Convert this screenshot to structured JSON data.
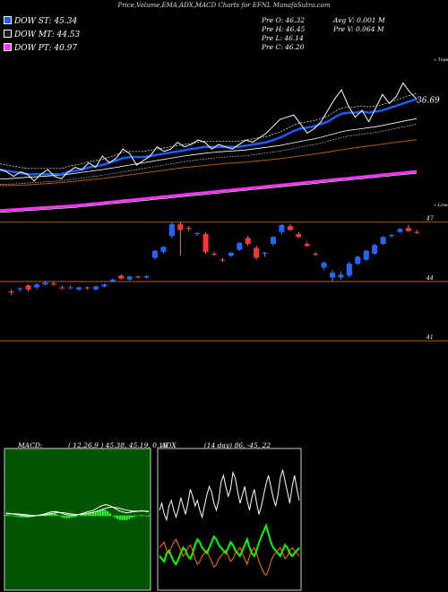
{
  "header": {
    "title": "Price,Volume,EMA,ADX,MACD Charts for EFNL  MunafaSutra.com"
  },
  "legend": [
    {
      "label": "DOW ST: 45.34",
      "color": "#1a5cff"
    },
    {
      "label": "DOW MT: 44.53",
      "color": "#1a1a1a"
    },
    {
      "label": "DOW PT: 40.97",
      "color": "#ff33ff"
    }
  ],
  "stats": {
    "open": "Pre  O: 46.32",
    "high": "Pre  H: 46.45",
    "low": "Pre  L: 46.14",
    "close": "Pre  C: 46.20",
    "avg_volume": "Avg V: 0.001 M",
    "prev_volume": "Pre  V: 0.064  M"
  },
  "chart_data": [
    {
      "type": "line",
      "title": "Price,Volume,EMA,ADX,MACD",
      "price_label": "36.69",
      "corner_labels": {
        "top": "« Tops",
        "bottom": "« Lows"
      },
      "series": [
        {
          "name": "DOW ST: 45.34",
          "color": "#1a5cff"
        },
        {
          "name": "DOW MT: 44.53",
          "color": "#1a1a1a"
        },
        {
          "name": "DOW PT: 40.97",
          "color": "#ff33ff"
        }
      ],
      "price": [
        36.0,
        35.9,
        35.7,
        35.9,
        35.8,
        35.5,
        35.8,
        36.0,
        35.7,
        35.6,
        35.9,
        36.1,
        36.0,
        36.3,
        36.1,
        36.6,
        36.3,
        36.5,
        36.9,
        36.7,
        36.2,
        36.4,
        36.6,
        37.0,
        36.8,
        36.9,
        37.2,
        37.0,
        37.1,
        37.3,
        37.2,
        36.9,
        37.1,
        37.0,
        36.9,
        37.1,
        37.3,
        37.2,
        37.4,
        37.6,
        37.9,
        38.2,
        38.3,
        38.4,
        38.0,
        37.6,
        37.8,
        38.1,
        38.6,
        39.1,
        39.5,
        38.8,
        38.3,
        38.6,
        38.1,
        38.7,
        39.3,
        38.9,
        39.2,
        39.8,
        39.4,
        39.1
      ],
      "ema_st": [
        36.0,
        35.95,
        35.9,
        35.85,
        35.8,
        35.8,
        35.8,
        35.8,
        35.8,
        35.8,
        35.9,
        35.95,
        36.0,
        36.1,
        36.15,
        36.2,
        36.3,
        36.4,
        36.5,
        36.55,
        36.55,
        36.55,
        36.6,
        36.65,
        36.7,
        36.75,
        36.8,
        36.85,
        36.9,
        36.95,
        37.0,
        37.0,
        37.0,
        37.0,
        37.0,
        37.0,
        37.05,
        37.1,
        37.15,
        37.2,
        37.3,
        37.4,
        37.55,
        37.7,
        37.8,
        37.85,
        37.9,
        38.0,
        38.1,
        38.3,
        38.45,
        38.5,
        38.5,
        38.55,
        38.5,
        38.55,
        38.6,
        38.7,
        38.8,
        38.9,
        39.0,
        39.1
      ],
      "ema_mt": [
        35.6,
        35.6,
        35.62,
        35.64,
        35.66,
        35.68,
        35.7,
        35.72,
        35.74,
        35.76,
        35.8,
        35.84,
        35.88,
        35.92,
        35.96,
        36.0,
        36.05,
        36.1,
        36.15,
        36.2,
        36.25,
        36.3,
        36.35,
        36.4,
        36.45,
        36.5,
        36.55,
        36.6,
        36.64,
        36.68,
        36.72,
        36.75,
        36.78,
        36.8,
        36.82,
        36.84,
        36.86,
        36.9,
        36.94,
        36.98,
        37.02,
        37.06,
        37.12,
        37.18,
        37.24,
        37.3,
        37.35,
        37.42,
        37.5,
        37.58,
        37.66,
        37.72,
        37.76,
        37.8,
        37.84,
        37.88,
        37.94,
        38.0,
        38.06,
        38.12,
        38.18,
        38.24
      ],
      "ema_lt": [
        35.3,
        35.3,
        35.31,
        35.32,
        35.33,
        35.35,
        35.37,
        35.39,
        35.41,
        35.43,
        35.46,
        35.49,
        35.52,
        35.55,
        35.58,
        35.61,
        35.65,
        35.69,
        35.73,
        35.77,
        35.81,
        35.85,
        35.89,
        35.93,
        35.97,
        36.01,
        36.05,
        36.09,
        36.12,
        36.15,
        36.18,
        36.21,
        36.24,
        36.27,
        36.29,
        36.31,
        36.33,
        36.36,
        36.39,
        36.42,
        36.45,
        36.48,
        36.52,
        36.56,
        36.6,
        36.64,
        36.68,
        36.72,
        36.77,
        36.82,
        36.87,
        36.92,
        36.96,
        37.0,
        37.04,
        37.08,
        37.12,
        37.16,
        37.2,
        37.24,
        37.28,
        37.32
      ],
      "ema_pt": [
        34.2,
        34.22,
        34.24,
        34.26,
        34.28,
        34.3,
        34.32,
        34.34,
        34.36,
        34.38,
        34.4,
        34.42,
        34.45,
        34.48,
        34.51,
        34.54,
        34.57,
        34.6,
        34.63,
        34.66,
        34.69,
        34.72,
        34.75,
        34.78,
        34.81,
        34.84,
        34.87,
        34.9,
        34.93,
        34.96,
        34.99,
        35.02,
        35.05,
        35.08,
        35.11,
        35.14,
        35.17,
        35.2,
        35.23,
        35.26,
        35.29,
        35.32,
        35.35,
        35.38,
        35.41,
        35.44,
        35.47,
        35.5,
        35.53,
        35.56,
        35.59,
        35.62,
        35.65,
        35.68,
        35.71,
        35.74,
        35.77,
        35.8,
        35.83,
        35.86,
        35.89,
        35.92
      ]
    },
    {
      "type": "candlestick",
      "y_ticks": [
        {
          "label": "47",
          "value": 47
        },
        {
          "label": "44",
          "value": 44
        },
        {
          "label": "41",
          "value": 41
        }
      ],
      "candles": [
        [
          43.5,
          43.6,
          43.3,
          43.45
        ],
        [
          43.6,
          43.7,
          43.5,
          43.65
        ],
        [
          43.8,
          43.85,
          43.5,
          43.6
        ],
        [
          43.7,
          43.9,
          43.6,
          43.85
        ],
        [
          43.85,
          44.0,
          43.8,
          43.95
        ],
        [
          43.9,
          44.0,
          43.8,
          43.85
        ],
        [
          43.7,
          43.8,
          43.6,
          43.65
        ],
        [
          43.7,
          43.8,
          43.6,
          43.7
        ],
        [
          43.6,
          43.75,
          43.55,
          43.7
        ],
        [
          43.7,
          43.75,
          43.6,
          43.65
        ],
        [
          43.6,
          43.8,
          43.55,
          43.75
        ],
        [
          43.75,
          43.9,
          43.7,
          43.85
        ],
        [
          44.0,
          44.15,
          43.95,
          44.1
        ],
        [
          44.3,
          44.35,
          44.1,
          44.15
        ],
        [
          44.1,
          44.3,
          44.05,
          44.25
        ],
        [
          44.25,
          44.3,
          44.15,
          44.2
        ],
        [
          44.2,
          44.3,
          44.15,
          44.28
        ],
        [
          45.2,
          45.6,
          45.1,
          45.55
        ],
        [
          45.5,
          45.8,
          45.4,
          45.75
        ],
        [
          46.3,
          47.0,
          46.2,
          46.9
        ],
        [
          46.9,
          47.0,
          45.3,
          46.6
        ],
        [
          46.7,
          46.8,
          46.55,
          46.65
        ],
        [
          46.4,
          46.5,
          46.3,
          46.45
        ],
        [
          46.4,
          46.5,
          45.4,
          45.5
        ],
        [
          45.4,
          45.5,
          45.3,
          45.35
        ],
        [
          45.1,
          45.2,
          45.0,
          45.05
        ],
        [
          45.3,
          45.5,
          45.25,
          45.45
        ],
        [
          45.6,
          46.0,
          45.55,
          45.95
        ],
        [
          46.2,
          46.3,
          45.8,
          45.9
        ],
        [
          45.7,
          45.8,
          45.1,
          45.2
        ],
        [
          45.4,
          45.5,
          45.25,
          45.45
        ],
        [
          45.9,
          46.3,
          45.8,
          46.25
        ],
        [
          46.5,
          46.9,
          46.4,
          46.85
        ],
        [
          46.8,
          46.9,
          46.55,
          46.6
        ],
        [
          46.4,
          46.5,
          46.2,
          46.25
        ],
        [
          45.9,
          46.0,
          45.75,
          45.8
        ],
        [
          45.4,
          45.5,
          45.3,
          45.35
        ],
        [
          44.7,
          45.0,
          44.6,
          44.95
        ],
        [
          44.2,
          44.6,
          44.0,
          44.45
        ],
        [
          44.2,
          44.5,
          44.1,
          44.35
        ],
        [
          44.3,
          45.0,
          44.2,
          44.9
        ],
        [
          44.9,
          45.3,
          44.85,
          45.25
        ],
        [
          45.1,
          45.6,
          45.05,
          45.55
        ],
        [
          45.4,
          45.9,
          45.35,
          45.85
        ],
        [
          45.9,
          46.3,
          45.85,
          46.25
        ],
        [
          46.3,
          46.4,
          46.2,
          46.35
        ],
        [
          46.5,
          46.7,
          46.45,
          46.65
        ],
        [
          46.7,
          46.85,
          46.5,
          46.55
        ],
        [
          46.5,
          46.6,
          46.4,
          46.45
        ]
      ]
    },
    {
      "type": "line",
      "title": "MACD",
      "params": "( 12,26,9 ) 45.38,  45.19,  0.19",
      "macd": [
        0.2,
        0.18,
        0.15,
        0.12,
        0.1,
        0.08,
        0.05,
        0.02,
        0.0,
        -0.02,
        -0.03,
        -0.02,
        0.0,
        0.03,
        0.06,
        0.1,
        0.14,
        0.2,
        0.26,
        0.3,
        0.32,
        0.3,
        0.25,
        0.18,
        0.12,
        0.08,
        0.06,
        0.05,
        0.04,
        0.06,
        0.1,
        0.15,
        0.2,
        0.26,
        0.3,
        0.35,
        0.4,
        0.5,
        0.6,
        0.7,
        0.78,
        0.82,
        0.8,
        0.74,
        0.65,
        0.55,
        0.45,
        0.35,
        0.3,
        0.25,
        0.22,
        0.24,
        0.28,
        0.3,
        0.32,
        0.35,
        0.38,
        0.35,
        0.32,
        0.3
      ],
      "signal": [
        0.15,
        0.15,
        0.15,
        0.14,
        0.14,
        0.13,
        0.12,
        0.1,
        0.08,
        0.06,
        0.04,
        0.03,
        0.02,
        0.02,
        0.03,
        0.05,
        0.07,
        0.1,
        0.13,
        0.17,
        0.2,
        0.23,
        0.24,
        0.24,
        0.22,
        0.19,
        0.16,
        0.13,
        0.11,
        0.1,
        0.1,
        0.11,
        0.13,
        0.16,
        0.19,
        0.22,
        0.26,
        0.3,
        0.36,
        0.42,
        0.49,
        0.55,
        0.6,
        0.63,
        0.64,
        0.62,
        0.59,
        0.54,
        0.49,
        0.45,
        0.41,
        0.38,
        0.36,
        0.35,
        0.34,
        0.34,
        0.35,
        0.35,
        0.34,
        0.33
      ]
    },
    {
      "type": "line",
      "title": "ADX",
      "params": "(14 day) 86,  -45,  22",
      "adx": [
        55,
        60,
        52,
        48,
        58,
        62,
        55,
        50,
        56,
        64,
        58,
        52,
        60,
        70,
        65,
        58,
        62,
        55,
        50,
        58,
        66,
        72,
        68,
        60,
        55,
        62,
        75,
        80,
        72,
        65,
        70,
        82,
        78,
        68,
        60,
        66,
        72,
        62,
        55,
        64,
        70,
        60,
        52,
        58,
        66,
        74,
        80,
        72,
        64,
        58,
        66,
        78,
        84,
        76,
        68,
        60,
        72,
        80,
        70,
        62
      ],
      "di_plus": [
        22,
        20,
        18,
        24,
        26,
        22,
        18,
        16,
        20,
        24,
        28,
        26,
        22,
        20,
        24,
        30,
        34,
        32,
        28,
        26,
        24,
        28,
        32,
        36,
        34,
        30,
        28,
        26,
        24,
        28,
        32,
        30,
        26,
        24,
        22,
        26,
        30,
        34,
        28,
        24,
        22,
        26,
        32,
        36,
        40,
        44,
        38,
        32,
        28,
        26,
        24,
        22,
        26,
        30,
        28,
        24,
        22,
        24,
        26,
        28
      ],
      "di_minus": [
        28,
        30,
        32,
        26,
        24,
        28,
        32,
        34,
        30,
        26,
        22,
        24,
        28,
        30,
        26,
        20,
        16,
        18,
        22,
        24,
        26,
        22,
        18,
        14,
        16,
        20,
        22,
        24,
        26,
        22,
        18,
        20,
        24,
        26,
        28,
        24,
        20,
        16,
        22,
        26,
        28,
        24,
        18,
        14,
        10,
        8,
        12,
        18,
        22,
        24,
        26,
        28,
        24,
        20,
        22,
        26,
        28,
        26,
        24,
        22
      ]
    }
  ]
}
